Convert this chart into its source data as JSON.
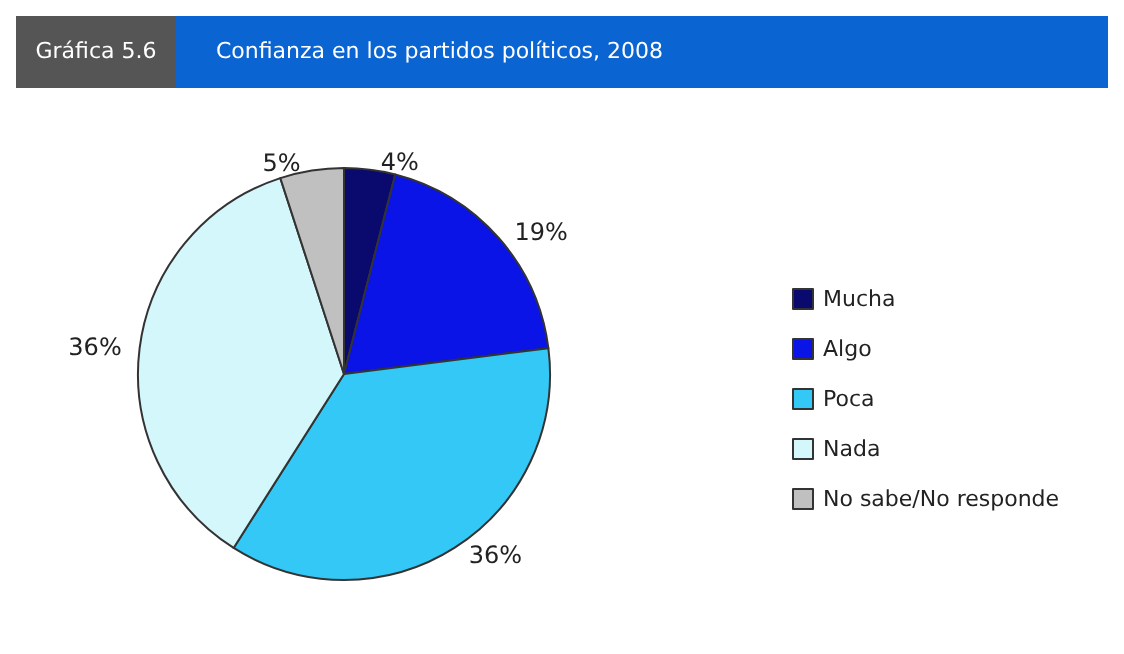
{
  "chart_data": {
    "type": "pie",
    "title": "Confianza en los partidos políticos, 2008",
    "subtitle": "Gráfica 5.6",
    "categories": [
      "Mucha",
      "Algo",
      "Poca",
      "Nada",
      "No sabe/No responde"
    ],
    "values": [
      4,
      19,
      36,
      36,
      5
    ],
    "value_labels": [
      "4%",
      "19%",
      "36%",
      "36%",
      "5%"
    ],
    "colors": [
      "#0a0a6e",
      "#0a14e6",
      "#33c8f5",
      "#d4f7fb",
      "#c0c0c0"
    ],
    "legend": "right"
  }
}
